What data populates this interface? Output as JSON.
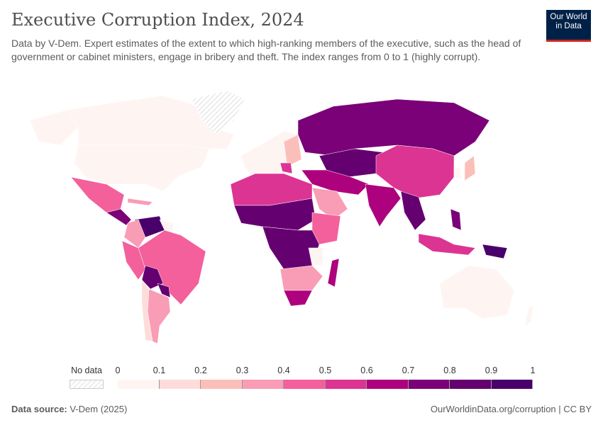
{
  "header": {
    "title": "Executive Corruption Index, 2024",
    "subtitle": "Data by V-Dem. Expert estimates of the extent to which high-ranking members of the executive, such as the head of government or cabinet ministers, engage in bribery and theft. The index ranges from 0 to 1 (highly corrupt).",
    "logo_line1": "Our World",
    "logo_line2": "in Data"
  },
  "legend": {
    "no_data_label": "No data",
    "ticks": [
      "0",
      "0.1",
      "0.2",
      "0.3",
      "0.4",
      "0.5",
      "0.6",
      "0.7",
      "0.8",
      "0.9",
      "1"
    ],
    "colors": [
      "#fef5f3",
      "#fddcd9",
      "#fbbfba",
      "#f99cb5",
      "#f3609b",
      "#dc3493",
      "#ae017e",
      "#7a0177",
      "#650070",
      "#49006a"
    ],
    "no_data_color": "hatched"
  },
  "footer": {
    "source_label": "Data source:",
    "source_value": "V-Dem (2025)",
    "link": "OurWorldinData.org/corruption | CC BY"
  }
}
